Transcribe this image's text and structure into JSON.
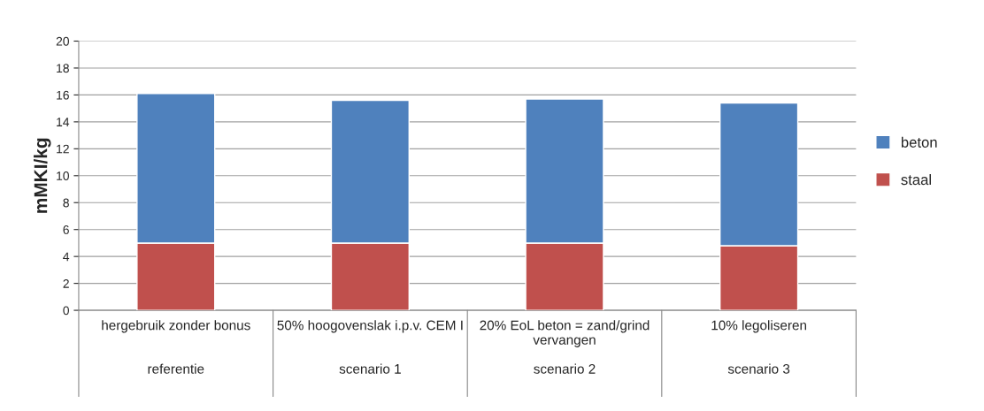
{
  "chart_data": {
    "type": "bar",
    "stacked": true,
    "ylabel": "mMKI/kg",
    "categories": [
      "hergebruik zonder bonus\n\n\nreferentie",
      "50% hoogovenslak i.p.v. CEM I\n\n\nscenario 1",
      "20% EoL beton = zand/grind\nvervangen\n\nscenario 2",
      "10% legoliseren\n\n\nscenario 3"
    ],
    "series": [
      {
        "name": "staal",
        "color": "#c0504d",
        "values": [
          5.0,
          5.0,
          5.0,
          4.8
        ]
      },
      {
        "name": "beton",
        "color": "#4f81bd",
        "values": [
          11.1,
          10.6,
          10.7,
          10.6
        ]
      }
    ],
    "ylim": [
      0,
      20
    ],
    "yticks": [
      0,
      2,
      4,
      6,
      8,
      10,
      12,
      14,
      16,
      18,
      20
    ],
    "grid": "y",
    "legend": "right"
  }
}
